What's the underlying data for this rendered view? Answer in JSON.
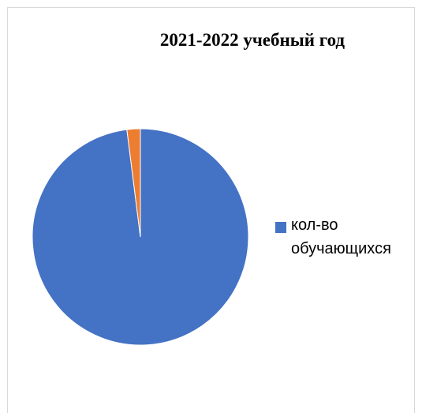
{
  "chart_data": {
    "type": "pie",
    "title": "2021-2022 учебный год",
    "slices": [
      {
        "name": "кол-во обучающихся",
        "value": 98,
        "color": "#4472c4"
      },
      {
        "name": "",
        "value": 2,
        "color": "#ed7d31"
      }
    ],
    "legend": {
      "placement": "right",
      "entries": [
        {
          "label": "кол-во обучающихся",
          "color": "#4472c4"
        }
      ]
    }
  }
}
